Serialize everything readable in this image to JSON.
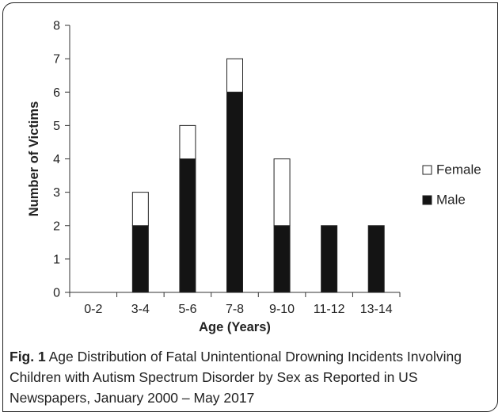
{
  "caption": {
    "label": "Fig. 1",
    "text": "Age Distribution of Fatal Unintentional Drowning Incidents Involving Children with Autism Spectrum Disorder by Sex as Reported in US Newspapers, January 2000 – May 2017"
  },
  "chart_data": {
    "type": "bar",
    "stacked": true,
    "categories": [
      "0-2",
      "3-4",
      "5-6",
      "7-8",
      "9-10",
      "11-12",
      "13-14"
    ],
    "series": [
      {
        "name": "Male",
        "values": [
          0,
          2,
          4,
          6,
          2,
          2,
          2
        ],
        "color": "#141414"
      },
      {
        "name": "Female",
        "values": [
          0,
          1,
          1,
          1,
          2,
          0,
          0
        ],
        "color": "#ffffff"
      }
    ],
    "xlabel": "Age (Years)",
    "ylabel": "Number of Victims",
    "ylim": [
      0,
      8
    ],
    "yticks": [
      0,
      1,
      2,
      3,
      4,
      5,
      6,
      7,
      8
    ],
    "grid": false,
    "legend_position": "right",
    "legend_order": [
      "Female",
      "Male"
    ]
  }
}
